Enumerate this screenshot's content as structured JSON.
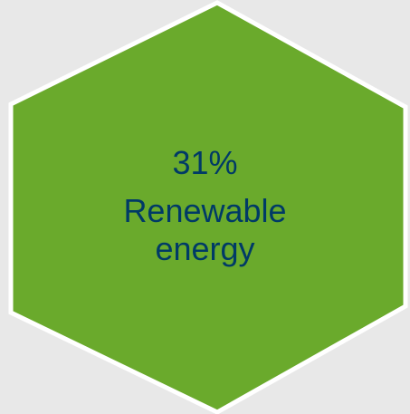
{
  "stat": {
    "value": "31%",
    "label": "Renewable energy"
  },
  "colors": {
    "background": "#e8e8e8",
    "hexagon_fill": "#6aaa2c",
    "hexagon_border": "#ffffff",
    "text": "#003a66"
  }
}
